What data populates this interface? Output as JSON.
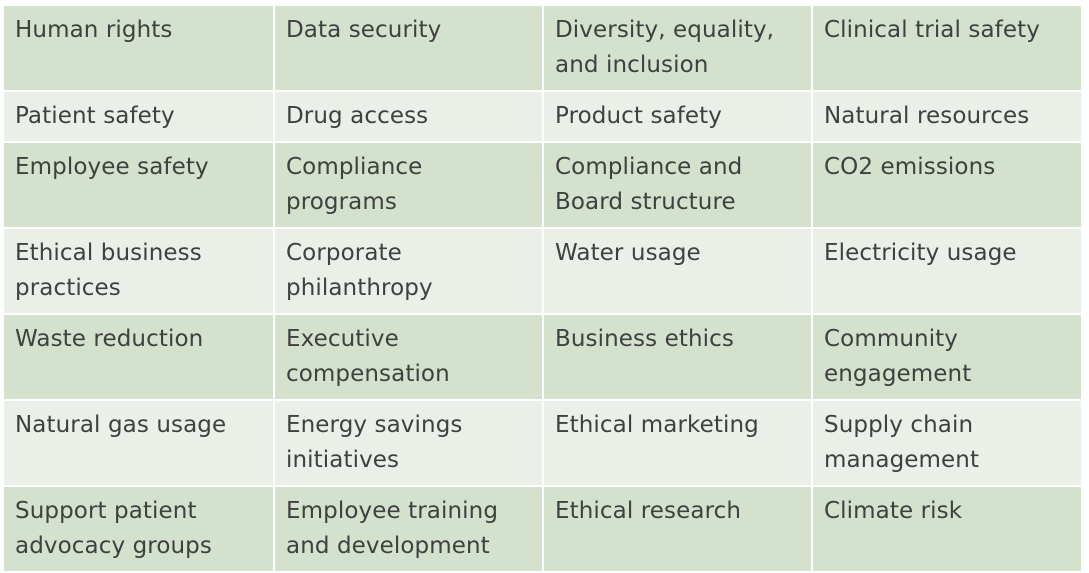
{
  "table": {
    "rows": [
      [
        "Human rights",
        "Data security",
        "Diversity, equality, and inclusion",
        "Clinical trial safety"
      ],
      [
        "Patient safety",
        "Drug access",
        "Product safety",
        "Natural resources"
      ],
      [
        "Employee safety",
        "Compliance programs",
        "Compliance and Board structure",
        "CO2 emissions"
      ],
      [
        "Ethical business practices",
        "Corporate philanthropy",
        "Water usage",
        "Electricity usage"
      ],
      [
        "Waste reduction",
        "Executive compensation",
        "Business ethics",
        "Community engagement"
      ],
      [
        "Natural gas usage",
        "Energy savings initiatives",
        "Ethical marketing",
        "Supply chain management"
      ],
      [
        "Support patient advocacy groups",
        "Employee training and development",
        "Ethical research",
        "Climate risk"
      ]
    ]
  },
  "colors": {
    "band_dark": "#d3e1cd",
    "band_light": "#eaf0e7",
    "text": "#404040"
  }
}
